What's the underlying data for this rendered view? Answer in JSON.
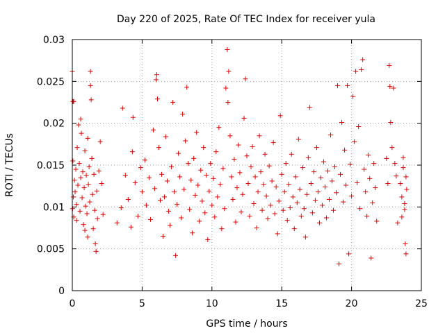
{
  "chart_data": {
    "type": "scatter",
    "title": "Day 220 of 2025, Rate Of TEC Index for receiver yula",
    "xlabel": "GPS time / hours",
    "ylabel": "ROTI / TECUs",
    "xlim": [
      0,
      25
    ],
    "ylim": [
      0,
      0.03
    ],
    "xticks": [
      "0",
      "5",
      "10",
      "15",
      "20",
      "25"
    ],
    "yticks": [
      "0",
      "0.005",
      "0.01",
      "0.015",
      "0.02",
      "0.025",
      "0.03"
    ],
    "grid": true,
    "marker": "+",
    "color": "#e00000",
    "series": [
      {
        "values": [
          [
            0.05,
            0.0226
          ],
          [
            0.1,
            0.0226
          ],
          [
            0.0,
            0.0262
          ],
          [
            0.02,
            0.0098
          ],
          [
            0.04,
            0.0155
          ],
          [
            0.08,
            0.0112
          ],
          [
            0.1,
            0.0088
          ],
          [
            0.15,
            0.0132
          ],
          [
            0.2,
            0.0118
          ],
          [
            0.25,
            0.0145
          ],
          [
            0.3,
            0.0103
          ],
          [
            0.35,
            0.0171
          ],
          [
            0.4,
            0.0126
          ],
          [
            0.45,
            0.0198
          ],
          [
            0.5,
            0.0152
          ],
          [
            0.55,
            0.0095
          ],
          [
            0.6,
            0.0135
          ],
          [
            0.65,
            0.0188
          ],
          [
            0.7,
            0.0111
          ],
          [
            0.75,
            0.0142
          ],
          [
            0.8,
            0.0079
          ],
          [
            0.85,
            0.0123
          ],
          [
            0.9,
            0.0167
          ],
          [
            0.95,
            0.0101
          ],
          [
            1.0,
            0.0138
          ],
          [
            1.05,
            0.0092
          ],
          [
            1.1,
            0.0182
          ],
          [
            1.15,
            0.0127
          ],
          [
            1.2,
            0.0148
          ],
          [
            1.25,
            0.0106
          ],
          [
            1.3,
            0.0262
          ],
          [
            1.3,
            0.0245
          ],
          [
            1.35,
            0.0228
          ],
          [
            1.4,
            0.0158
          ],
          [
            1.45,
            0.0115
          ],
          [
            1.5,
            0.0074
          ],
          [
            1.55,
            0.0139
          ],
          [
            1.6,
            0.0096
          ],
          [
            1.65,
            0.0056
          ],
          [
            1.7,
            0.0047
          ],
          [
            1.75,
            0.0119
          ],
          [
            1.8,
            0.0086
          ],
          [
            1.9,
            0.0143
          ],
          [
            2.0,
            0.0178
          ],
          [
            2.1,
            0.0128
          ],
          [
            2.2,
            0.0091
          ],
          [
            0.6,
            0.0205
          ],
          [
            0.9,
            0.0072
          ],
          [
            1.1,
            0.0064
          ],
          [
            0.3,
            0.0084
          ],
          [
            3.2,
            0.0081
          ],
          [
            3.5,
            0.0099
          ],
          [
            3.6,
            0.0218
          ],
          [
            3.8,
            0.0138
          ],
          [
            4.0,
            0.0109
          ],
          [
            4.2,
            0.0076
          ],
          [
            4.3,
            0.0166
          ],
          [
            4.35,
            0.0207
          ],
          [
            4.5,
            0.0129
          ],
          [
            4.7,
            0.0089
          ],
          [
            4.9,
            0.0147
          ],
          [
            5.0,
            0.0118
          ],
          [
            5.2,
            0.0156
          ],
          [
            5.3,
            0.0102
          ],
          [
            5.5,
            0.0135
          ],
          [
            5.6,
            0.0085
          ],
          [
            5.8,
            0.0192
          ],
          [
            5.9,
            0.0122
          ],
          [
            6.0,
            0.0252
          ],
          [
            6.05,
            0.0258
          ],
          [
            6.1,
            0.0229
          ],
          [
            6.2,
            0.0171
          ],
          [
            6.3,
            0.0108
          ],
          [
            6.4,
            0.0139
          ],
          [
            6.5,
            0.0065
          ],
          [
            6.6,
            0.0112
          ],
          [
            6.7,
            0.0184
          ],
          [
            6.8,
            0.0131
          ],
          [
            6.9,
            0.0095
          ],
          [
            7.0,
            0.0078
          ],
          [
            7.1,
            0.0148
          ],
          [
            7.2,
            0.0225
          ],
          [
            7.3,
            0.0118
          ],
          [
            7.4,
            0.0042
          ],
          [
            7.5,
            0.0103
          ],
          [
            7.6,
            0.0164
          ],
          [
            7.7,
            0.0136
          ],
          [
            7.8,
            0.0087
          ],
          [
            7.9,
            0.0211
          ],
          [
            8.0,
            0.0121
          ],
          [
            8.1,
            0.0179
          ],
          [
            8.2,
            0.0243
          ],
          [
            8.3,
            0.0152
          ],
          [
            8.4,
            0.0097
          ],
          [
            8.5,
            0.0132
          ],
          [
            8.6,
            0.0069
          ],
          [
            8.7,
            0.0158
          ],
          [
            8.8,
            0.0114
          ],
          [
            8.9,
            0.0189
          ],
          [
            9.0,
            0.0126
          ],
          [
            9.1,
            0.0083
          ],
          [
            9.2,
            0.0144
          ],
          [
            9.3,
            0.0107
          ],
          [
            9.4,
            0.0171
          ],
          [
            9.5,
            0.0093
          ],
          [
            9.6,
            0.0138
          ],
          [
            9.7,
            0.0061
          ],
          [
            9.8,
            0.0119
          ],
          [
            9.9,
            0.0152
          ],
          [
            10.0,
            0.0102
          ],
          [
            10.1,
            0.0134
          ],
          [
            10.2,
            0.0088
          ],
          [
            10.3,
            0.0166
          ],
          [
            10.4,
            0.0112
          ],
          [
            10.5,
            0.0195
          ],
          [
            10.6,
            0.0127
          ],
          [
            10.7,
            0.0074
          ],
          [
            10.8,
            0.0146
          ],
          [
            10.9,
            0.0098
          ],
          [
            11.0,
            0.0242
          ],
          [
            11.1,
            0.0288
          ],
          [
            11.15,
            0.0225
          ],
          [
            11.2,
            0.0262
          ],
          [
            11.3,
            0.0185
          ],
          [
            11.4,
            0.0136
          ],
          [
            11.5,
            0.0109
          ],
          [
            11.6,
            0.0157
          ],
          [
            11.7,
            0.0082
          ],
          [
            11.8,
            0.0123
          ],
          [
            11.9,
            0.0174
          ],
          [
            12.0,
            0.0141
          ],
          [
            12.1,
            0.0094
          ],
          [
            12.2,
            0.0115
          ],
          [
            12.3,
            0.0206
          ],
          [
            12.4,
            0.0253
          ],
          [
            12.5,
            0.0161
          ],
          [
            12.6,
            0.0128
          ],
          [
            12.7,
            0.0089
          ],
          [
            12.8,
            0.0148
          ],
          [
            12.9,
            0.0172
          ],
          [
            13.0,
            0.0104
          ],
          [
            13.1,
            0.0136
          ],
          [
            13.2,
            0.0075
          ],
          [
            13.3,
            0.0118
          ],
          [
            13.4,
            0.0185
          ],
          [
            13.5,
            0.0142
          ],
          [
            13.6,
            0.0096
          ],
          [
            13.7,
            0.0127
          ],
          [
            13.8,
            0.0163
          ],
          [
            13.9,
            0.0113
          ],
          [
            14.0,
            0.0086
          ],
          [
            14.1,
            0.0149
          ],
          [
            14.2,
            0.0102
          ],
          [
            14.3,
            0.0131
          ],
          [
            14.4,
            0.0177
          ],
          [
            14.5,
            0.0092
          ],
          [
            14.6,
            0.0124
          ],
          [
            14.7,
            0.0068
          ],
          [
            14.8,
            0.0107
          ],
          [
            14.9,
            0.0209
          ],
          [
            15.0,
            0.0139
          ],
          [
            15.1,
            0.0096
          ],
          [
            15.2,
            0.0118
          ],
          [
            15.3,
            0.0152
          ],
          [
            15.4,
            0.0084
          ],
          [
            15.5,
            0.0127
          ],
          [
            15.6,
            0.0099
          ],
          [
            15.7,
            0.0163
          ],
          [
            15.8,
            0.0112
          ],
          [
            15.9,
            0.0074
          ],
          [
            16.0,
            0.0136
          ],
          [
            16.1,
            0.0105
          ],
          [
            16.2,
            0.0181
          ],
          [
            16.3,
            0.0121
          ],
          [
            16.4,
            0.0089
          ],
          [
            16.5,
            0.0147
          ],
          [
            16.6,
            0.0098
          ],
          [
            16.7,
            0.0064
          ],
          [
            16.8,
            0.0115
          ],
          [
            16.9,
            0.0159
          ],
          [
            17.0,
            0.0219
          ],
          [
            17.1,
            0.0128
          ],
          [
            17.2,
            0.0093
          ],
          [
            17.3,
            0.0142
          ],
          [
            17.4,
            0.0108
          ],
          [
            17.5,
            0.0171
          ],
          [
            17.6,
            0.0118
          ],
          [
            17.7,
            0.0081
          ],
          [
            17.8,
            0.0135
          ],
          [
            17.9,
            0.0102
          ],
          [
            18.0,
            0.0154
          ],
          [
            18.1,
            0.0124
          ],
          [
            18.2,
            0.0087
          ],
          [
            18.3,
            0.0143
          ],
          [
            18.4,
            0.0109
          ],
          [
            18.5,
            0.0186
          ],
          [
            18.6,
            0.0131
          ],
          [
            18.7,
            0.0096
          ],
          [
            18.8,
            0.0148
          ],
          [
            18.9,
            0.0117
          ],
          [
            19.0,
            0.0245
          ],
          [
            19.1,
            0.0032
          ],
          [
            19.2,
            0.0139
          ],
          [
            19.3,
            0.0201
          ],
          [
            19.4,
            0.0106
          ],
          [
            19.5,
            0.0168
          ],
          [
            19.6,
            0.0126
          ],
          [
            19.7,
            0.0245
          ],
          [
            19.8,
            0.0044
          ],
          [
            19.9,
            0.0151
          ],
          [
            20.0,
            0.0113
          ],
          [
            20.1,
            0.0232
          ],
          [
            20.2,
            0.0178
          ],
          [
            20.3,
            0.0262
          ],
          [
            20.4,
            0.0129
          ],
          [
            20.5,
            0.0196
          ],
          [
            20.6,
            0.0098
          ],
          [
            20.7,
            0.0264
          ],
          [
            20.8,
            0.0276
          ],
          [
            20.9,
            0.0145
          ],
          [
            21.0,
            0.0118
          ],
          [
            21.1,
            0.0089
          ],
          [
            21.2,
            0.0162
          ],
          [
            21.3,
            0.0134
          ],
          [
            21.4,
            0.0039
          ],
          [
            21.5,
            0.0105
          ],
          [
            21.6,
            0.0152
          ],
          [
            21.7,
            0.0123
          ],
          [
            21.8,
            0.0083
          ],
          [
            22.5,
            0.0158
          ],
          [
            22.6,
            0.0128
          ],
          [
            22.7,
            0.0269
          ],
          [
            22.75,
            0.0244
          ],
          [
            22.8,
            0.0201
          ],
          [
            22.9,
            0.0171
          ],
          [
            23.0,
            0.0242
          ],
          [
            23.1,
            0.0152
          ],
          [
            23.2,
            0.0137
          ],
          [
            23.3,
            0.0081
          ],
          [
            23.5,
            0.0128
          ],
          [
            23.6,
            0.0112
          ],
          [
            23.7,
            0.0147
          ],
          [
            23.8,
            0.0097
          ],
          [
            23.85,
            0.0056
          ],
          [
            23.9,
            0.0044
          ],
          [
            23.95,
            0.0121
          ],
          [
            23.7,
            0.0159
          ],
          [
            23.8,
            0.0104
          ],
          [
            23.6,
            0.0088
          ],
          [
            23.9,
            0.0136
          ]
        ]
      }
    ]
  }
}
